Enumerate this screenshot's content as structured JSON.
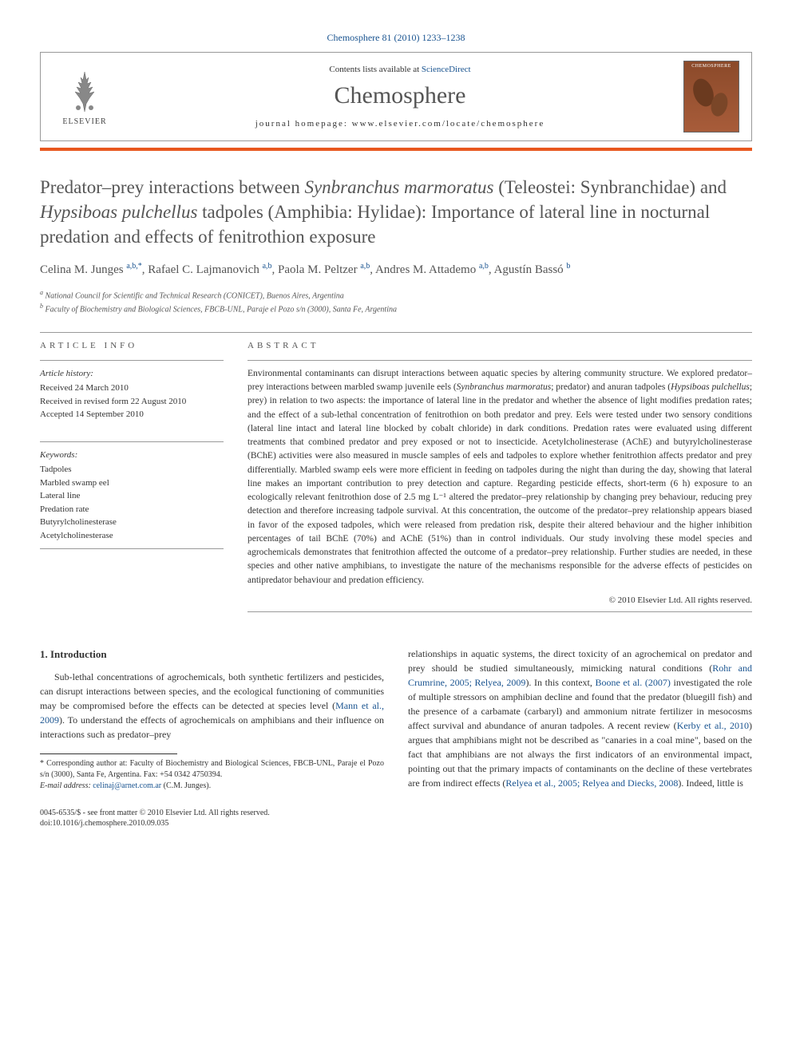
{
  "header": {
    "reference": "Chemosphere 81 (2010) 1233–1238",
    "contents_prefix": "Contents lists available at ",
    "contents_link": "ScienceDirect",
    "journal_title": "Chemosphere",
    "homepage_label": "journal homepage: www.elsevier.com/locate/chemosphere",
    "publisher": "ELSEVIER",
    "cover_label": "CHEMOSPHERE"
  },
  "title": "Predator–prey interactions between <em>Synbranchus marmoratus</em> (Teleostei: Synbranchidae) and <em>Hypsiboas pulchellus</em> tadpoles (Amphibia: Hylidae): Importance of lateral line in nocturnal predation and effects of fenitrothion exposure",
  "authors_html": "Celina M. Junges <sup>a,b,*</sup>, Rafael C. Lajmanovich <sup>a,b</sup>, Paola M. Peltzer <sup>a,b</sup>, Andres M. Attademo <sup>a,b</sup>, Agustín Bassó <sup>b</sup>",
  "affiliations": [
    {
      "sup": "a",
      "text": "National Council for Scientific and Technical Research (CONICET), Buenos Aires, Argentina"
    },
    {
      "sup": "b",
      "text": "Faculty of Biochemistry and Biological Sciences, FBCB-UNL, Paraje el Pozo s/n (3000), Santa Fe, Argentina"
    }
  ],
  "info_heading": "ARTICLE INFO",
  "abstract_heading": "ABSTRACT",
  "history": {
    "label": "Article history:",
    "received": "Received 24 March 2010",
    "revised": "Received in revised form 22 August 2010",
    "accepted": "Accepted 14 September 2010"
  },
  "keywords": {
    "label": "Keywords:",
    "items": [
      "Tadpoles",
      "Marbled swamp eel",
      "Lateral line",
      "Predation rate",
      "Butyrylcholinesterase",
      "Acetylcholinesterase"
    ]
  },
  "abstract": "Environmental contaminants can disrupt interactions between aquatic species by altering community structure. We explored predator–prey interactions between marbled swamp juvenile eels (<em>Synbranchus marmoratus</em>; predator) and anuran tadpoles (<em>Hypsiboas pulchellus</em>; prey) in relation to two aspects: the importance of lateral line in the predator and whether the absence of light modifies predation rates; and the effect of a sub-lethal concentration of fenitrothion on both predator and prey. Eels were tested under two sensory conditions (lateral line intact and lateral line blocked by cobalt chloride) in dark conditions. Predation rates were evaluated using different treatments that combined predator and prey exposed or not to insecticide. Acetylcholinesterase (AChE) and butyrylcholinesterase (BChE) activities were also measured in muscle samples of eels and tadpoles to explore whether fenitrothion affects predator and prey differentially. Marbled swamp eels were more efficient in feeding on tadpoles during the night than during the day, showing that lateral line makes an important contribution to prey detection and capture. Regarding pesticide effects, short-term (6 h) exposure to an ecologically relevant fenitrothion dose of 2.5 mg L⁻¹ altered the predator–prey relationship by changing prey behaviour, reducing prey detection and therefore increasing tadpole survival. At this concentration, the outcome of the predator–prey relationship appears biased in favor of the exposed tadpoles, which were released from predation risk, despite their altered behaviour and the higher inhibition percentages of tail BChE (70%) and AChE (51%) than in control individuals. Our study involving these model species and agrochemicals demonstrates that fenitrothion affected the outcome of a predator–prey relationship. Further studies are needed, in these species and other native amphibians, to investigate the nature of the mechanisms responsible for the adverse effects of pesticides on antipredator behaviour and predation efficiency.",
  "copyright": "© 2010 Elsevier Ltd. All rights reserved.",
  "intro_heading": "1. Introduction",
  "intro_col1": "Sub-lethal concentrations of agrochemicals, both synthetic fertilizers and pesticides, can disrupt interactions between species, and the ecological functioning of communities may be compromised before the effects can be detected at species level (<a>Mann et al., 2009</a>). To understand the effects of agrochemicals on amphibians and their influence on interactions such as predator–prey",
  "intro_col2": "relationships in aquatic systems, the direct toxicity of an agrochemical on predator and prey should be studied simultaneously, mimicking natural conditions (<a>Rohr and Crumrine, 2005; Relyea, 2009</a>). In this context, <a>Boone et al. (2007)</a> investigated the role of multiple stressors on amphibian decline and found that the predator (bluegill fish) and the presence of a carbamate (carbaryl) and ammonium nitrate fertilizer in mesocosms affect survival and abundance of anuran tadpoles. A recent review (<a>Kerby et al., 2010</a>) argues that amphibians might not be described as \"canaries in a coal mine\", based on the fact that amphibians are not always the first indicators of an environmental impact, pointing out that the primary impacts of contaminants on the decline of these vertebrates are from indirect effects (<a>Relyea et al., 2005; Relyea and Diecks, 2008</a>). Indeed, little is",
  "footnote": {
    "corresponding": "* Corresponding author at: Faculty of Biochemistry and Biological Sciences, FBCB-UNL, Paraje el Pozo s/n (3000), Santa Fe, Argentina. Fax: +54 0342 4750394.",
    "email_label": "E-mail address:",
    "email": "celinaj@arnet.com.ar",
    "email_author": "(C.M. Junges)."
  },
  "footer": {
    "line1": "0045-6535/$ - see front matter © 2010 Elsevier Ltd. All rights reserved.",
    "line2": "doi:10.1016/j.chemosphere.2010.09.035"
  },
  "colors": {
    "accent": "#e8571e",
    "link": "#1a5490",
    "text": "#333333",
    "heading": "#555555"
  }
}
